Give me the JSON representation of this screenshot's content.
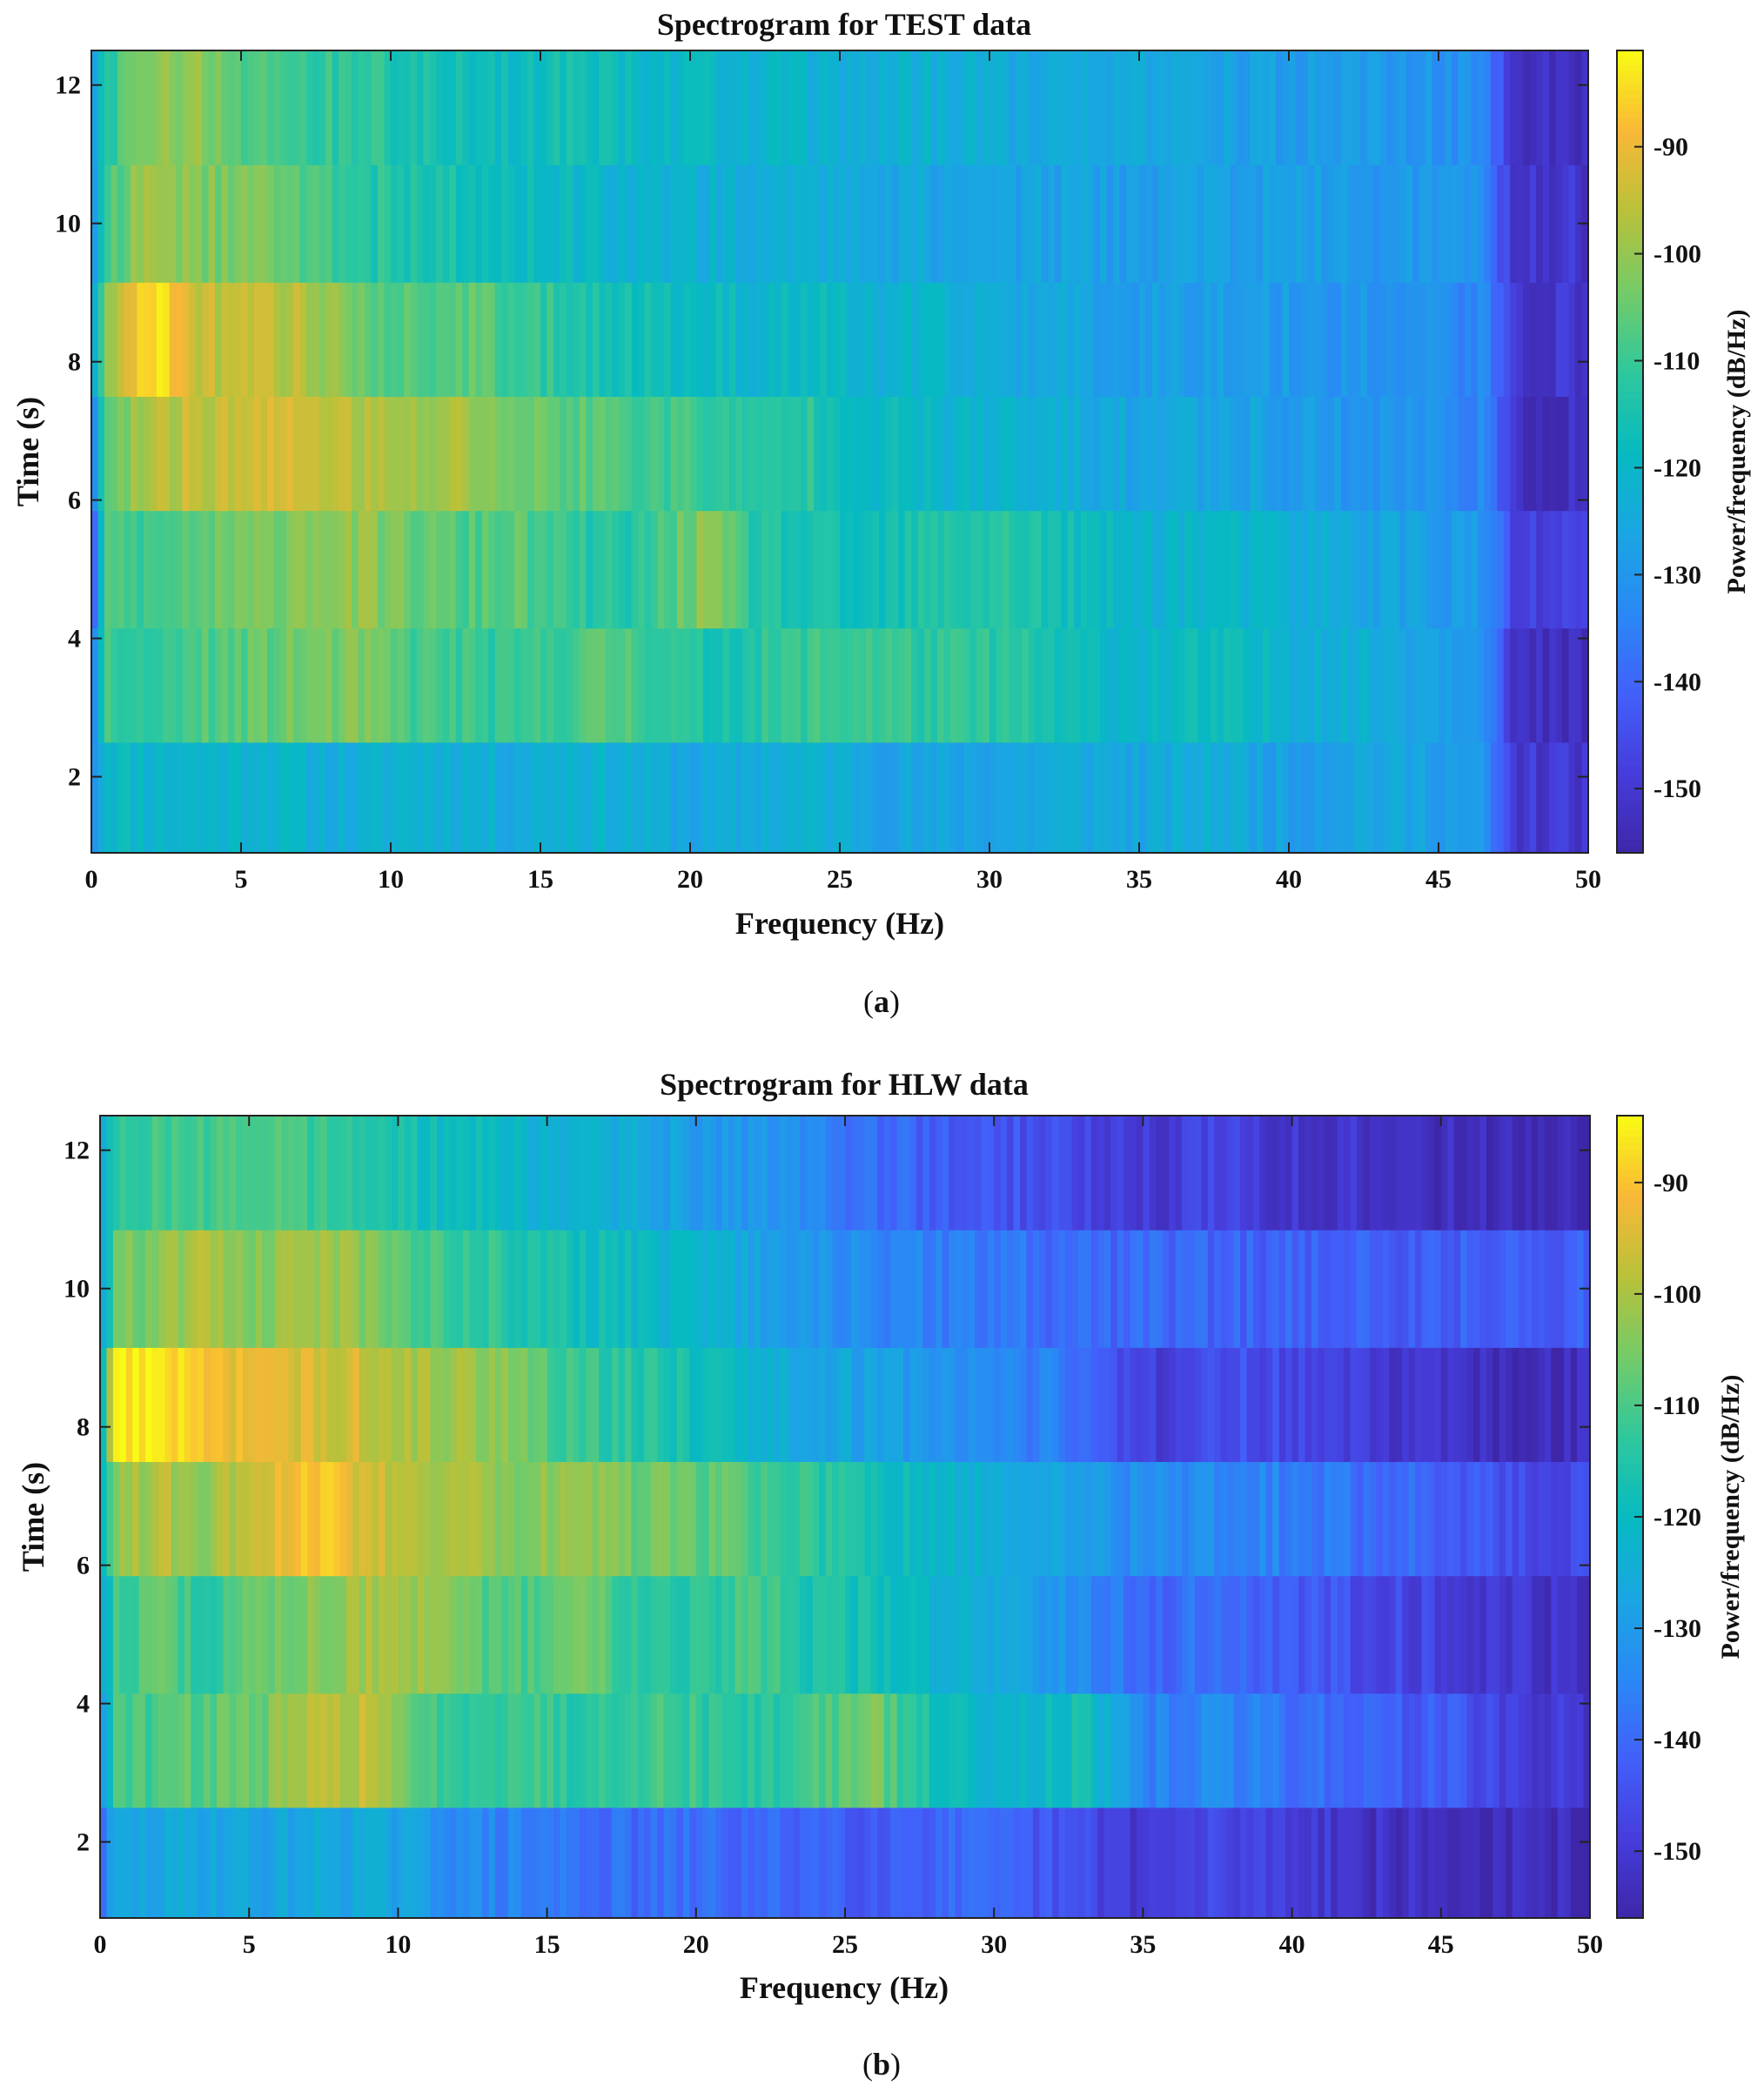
{
  "chart_data": [
    {
      "type": "heatmap",
      "panel": "a",
      "caption_letter": "a",
      "title": "Spectrogram for TEST data",
      "xlabel": "Frequency (Hz)",
      "ylabel": "Time (s)",
      "colorbar_label": "Power/frequency (dB/Hz)",
      "xlim": [
        0,
        50
      ],
      "ylim": [
        0.9,
        12.5
      ],
      "clim": [
        -156,
        -81
      ],
      "xticks": [
        0,
        5,
        10,
        15,
        20,
        25,
        30,
        35,
        40,
        45,
        50
      ],
      "yticks": [
        2,
        4,
        6,
        8,
        10,
        12
      ],
      "cticks": [
        -90,
        -100,
        -110,
        -120,
        -130,
        -140,
        -150
      ],
      "time_rows": [
        1.7,
        3.3,
        5.0,
        6.7,
        8.3,
        10.0,
        11.7
      ],
      "freq_anchors": [
        0,
        0.5,
        2,
        3.5,
        5.5,
        7,
        9,
        10.5,
        12.5,
        14,
        16,
        18,
        20.5,
        22,
        24,
        26,
        28,
        30.5,
        33,
        35,
        37.5,
        40,
        42.5,
        45,
        46.5,
        47.5,
        50
      ],
      "power": [
        [
          -132,
          -118,
          -120,
          -121,
          -120,
          -122,
          -124,
          -121,
          -122,
          -124,
          -121,
          -123,
          -126,
          -124,
          -122,
          -125,
          -127,
          -126,
          -124,
          -126,
          -123,
          -128,
          -125,
          -127,
          -131,
          -150,
          -150
        ],
        [
          -142,
          -110,
          -112,
          -108,
          -106,
          -104,
          -103,
          -108,
          -110,
          -112,
          -108,
          -107,
          -115,
          -113,
          -110,
          -109,
          -112,
          -112,
          -118,
          -120,
          -118,
          -121,
          -123,
          -126,
          -128,
          -153,
          -154
        ],
        [
          -145,
          -108,
          -110,
          -106,
          -104,
          -100,
          -101,
          -104,
          -108,
          -106,
          -112,
          -114,
          -101,
          -112,
          -116,
          -118,
          -114,
          -112,
          -118,
          -121,
          -120,
          -123,
          -125,
          -128,
          -130,
          -148,
          -149
        ],
        [
          -134,
          -108,
          -96,
          -95,
          -94,
          -93,
          -97,
          -100,
          -98,
          -104,
          -106,
          -108,
          -110,
          -114,
          -112,
          -118,
          -120,
          -122,
          -124,
          -126,
          -125,
          -128,
          -130,
          -131,
          -134,
          -152,
          -153
        ],
        [
          -132,
          -100,
          -83,
          -95,
          -96,
          -96,
          -104,
          -108,
          -106,
          -110,
          -112,
          -116,
          -118,
          -120,
          -118,
          -122,
          -122,
          -124,
          -126,
          -128,
          -127,
          -129,
          -130,
          -132,
          -134,
          -150,
          -151
        ],
        [
          -134,
          -110,
          -97,
          -102,
          -104,
          -106,
          -112,
          -114,
          -116,
          -118,
          -119,
          -121,
          -122,
          -124,
          -123,
          -124,
          -126,
          -126,
          -127,
          -128,
          -127,
          -128,
          -129,
          -130,
          -132,
          -150,
          -151
        ],
        [
          -130,
          -112,
          -101,
          -100,
          -108,
          -110,
          -112,
          -114,
          -116,
          -118,
          -116,
          -118,
          -120,
          -121,
          -122,
          -123,
          -122,
          -124,
          -125,
          -126,
          -127,
          -128,
          -129,
          -130,
          -133,
          -151,
          -152
        ]
      ]
    },
    {
      "type": "heatmap",
      "panel": "b",
      "caption_letter": "b",
      "title": "Spectrogram for HLW data",
      "xlabel": "Frequency (Hz)",
      "ylabel": "Time (s)",
      "colorbar_label": "Power/frequency (dB/Hz)",
      "xlim": [
        0,
        50
      ],
      "ylim": [
        0.9,
        12.5
      ],
      "clim": [
        -156,
        -84
      ],
      "xticks": [
        0,
        5,
        10,
        15,
        20,
        25,
        30,
        35,
        40,
        45,
        50
      ],
      "yticks": [
        2,
        4,
        6,
        8,
        10,
        12
      ],
      "cticks": [
        -90,
        -100,
        -110,
        -120,
        -130,
        -140,
        -150
      ],
      "time_rows": [
        1.7,
        3.3,
        5.0,
        6.7,
        8.3,
        10.0,
        11.7
      ],
      "freq_anchors": [
        0,
        0.5,
        2,
        3.5,
        5.5,
        7,
        9,
        10.5,
        12.5,
        14,
        16,
        18,
        20.5,
        22,
        24,
        26,
        28,
        30.5,
        33,
        35,
        37.5,
        40,
        42.5,
        45,
        46.5,
        47.5,
        50
      ],
      "power": [
        [
          -140,
          -128,
          -127,
          -126,
          -128,
          -126,
          -126,
          -129,
          -134,
          -136,
          -138,
          -140,
          -139,
          -141,
          -140,
          -142,
          -140,
          -142,
          -146,
          -150,
          -147,
          -148,
          -152,
          -153,
          -154,
          -154,
          -154
        ],
        [
          -132,
          -112,
          -110,
          -108,
          -106,
          -100,
          -97,
          -110,
          -112,
          -110,
          -114,
          -110,
          -113,
          -115,
          -110,
          -106,
          -118,
          -122,
          -118,
          -136,
          -134,
          -138,
          -141,
          -143,
          -145,
          -150,
          -150
        ],
        [
          -126,
          -112,
          -108,
          -114,
          -106,
          -104,
          -100,
          -102,
          -108,
          -110,
          -106,
          -112,
          -114,
          -110,
          -116,
          -118,
          -122,
          -126,
          -132,
          -141,
          -138,
          -143,
          -145,
          -148,
          -150,
          -151,
          -152
        ],
        [
          -128,
          -104,
          -99,
          -102,
          -96,
          -88,
          -96,
          -98,
          -100,
          -104,
          -102,
          -106,
          -108,
          -110,
          -114,
          -118,
          -122,
          -126,
          -128,
          -134,
          -133,
          -136,
          -139,
          -141,
          -143,
          -146,
          -147
        ],
        [
          -126,
          -86,
          -85,
          -92,
          -94,
          -95,
          -96,
          -100,
          -102,
          -104,
          -112,
          -114,
          -118,
          -122,
          -126,
          -128,
          -131,
          -134,
          -138,
          -150,
          -144,
          -146,
          -150,
          -152,
          -153,
          -154,
          -154
        ],
        [
          -130,
          -106,
          -104,
          -100,
          -104,
          -100,
          -104,
          -110,
          -112,
          -114,
          -118,
          -120,
          -124,
          -128,
          -132,
          -134,
          -136,
          -138,
          -140,
          -140,
          -141,
          -141,
          -142,
          -142,
          -142,
          -142,
          -142
        ],
        [
          -128,
          -114,
          -112,
          -110,
          -108,
          -112,
          -114,
          -118,
          -120,
          -122,
          -124,
          -126,
          -130,
          -132,
          -134,
          -140,
          -142,
          -144,
          -146,
          -150,
          -148,
          -150,
          -152,
          -153,
          -154,
          -155,
          -155
        ]
      ]
    }
  ]
}
